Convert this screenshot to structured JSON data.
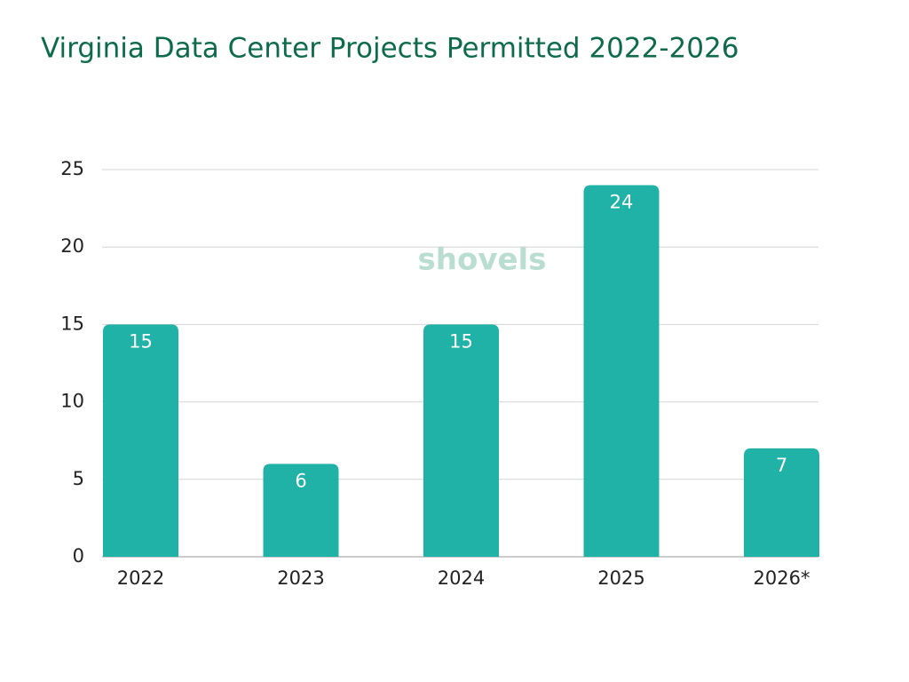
{
  "chart_data": {
    "type": "bar",
    "title": "Virginia Data Center Projects Permitted 2022-2026",
    "watermark": "shovels",
    "categories": [
      "2022",
      "2023",
      "2024",
      "2025",
      "2026*"
    ],
    "values": [
      15,
      6,
      15,
      24,
      7
    ],
    "color": "#20b2a6",
    "ylim": [
      0,
      25
    ],
    "yticks": [
      0,
      5,
      10,
      15,
      20,
      25
    ],
    "grid": true
  }
}
